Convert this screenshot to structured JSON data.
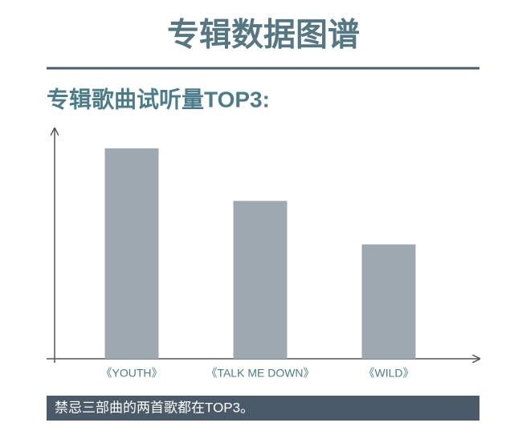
{
  "header": {
    "title": "专辑数据图谱"
  },
  "chart_data": {
    "type": "bar",
    "title": "专辑歌曲试听量TOP3:",
    "categories": [
      "《YOUTH》",
      "《TALK ME DOWN》",
      "《WILD》"
    ],
    "values": [
      92,
      69,
      50
    ],
    "color": "#9ea8b0",
    "ylim": [
      0,
      100
    ]
  },
  "footer": {
    "text": "禁忌三部曲的两首歌都在TOP3。"
  }
}
